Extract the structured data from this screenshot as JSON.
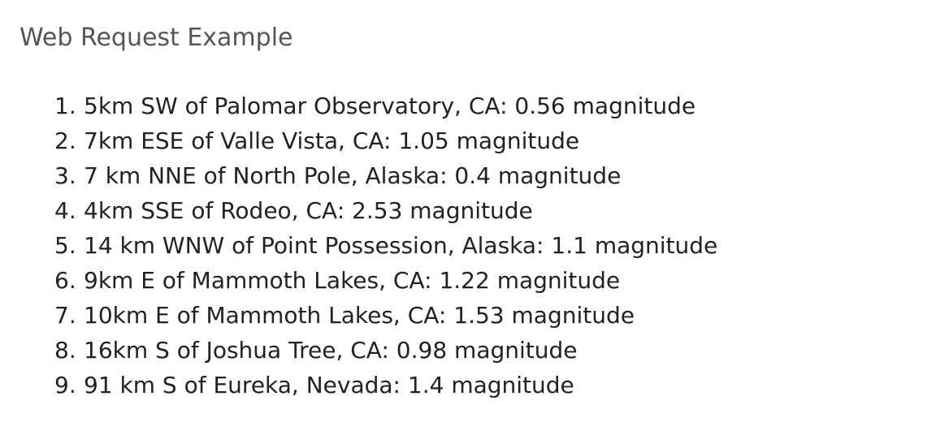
{
  "page": {
    "title": "Web Request Example"
  },
  "earthquakes": [
    {
      "number": "1.",
      "text": "5km SW of Palomar Observatory, CA: 0.56 magnitude"
    },
    {
      "number": "2.",
      "text": "7km ESE of Valle Vista, CA: 1.05 magnitude"
    },
    {
      "number": "3.",
      "text": "7 km NNE of North Pole, Alaska: 0.4 magnitude"
    },
    {
      "number": "4.",
      "text": "4km SSE of Rodeo, CA: 2.53 magnitude"
    },
    {
      "number": "5.",
      "text": "14 km WNW of Point Possession, Alaska: 1.1 magnitude"
    },
    {
      "number": "6.",
      "text": "9km E of Mammoth Lakes, CA: 1.22 magnitude"
    },
    {
      "number": "7.",
      "text": "10km E of Mammoth Lakes, CA: 1.53 magnitude"
    },
    {
      "number": "8.",
      "text": "16km S of Joshua Tree, CA: 0.98 magnitude"
    },
    {
      "number": "9.",
      "text": "91 km S of Eureka, Nevada: 1.4 magnitude"
    }
  ]
}
